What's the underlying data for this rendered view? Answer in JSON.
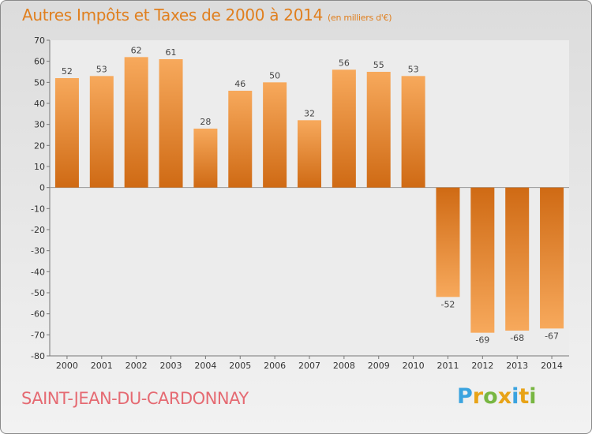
{
  "header": {
    "title": "Autres Impôts et Taxes de 2000 à 2014",
    "subtitle": "(en milliers d'€)"
  },
  "footer": {
    "commune": "SAINT-JEAN-DU-CARDONNAY",
    "logo_letters": [
      "P",
      "r",
      "o",
      "x",
      "i",
      "t",
      "i"
    ],
    "logo_colors": [
      "#3aa3df",
      "#e8a317",
      "#78b642",
      "#e8a317",
      "#3aa3df",
      "#e8a317",
      "#78b642"
    ]
  },
  "chart_data": {
    "type": "bar",
    "categories": [
      "2000",
      "2001",
      "2002",
      "2003",
      "2004",
      "2005",
      "2006",
      "2007",
      "2008",
      "2009",
      "2010",
      "2011",
      "2012",
      "2013",
      "2014"
    ],
    "values": [
      52,
      53,
      62,
      61,
      28,
      46,
      50,
      32,
      56,
      55,
      53,
      -52,
      -69,
      -68,
      -67
    ],
    "data_labels": [
      "52",
      "53",
      "62",
      "61",
      "28",
      "46",
      "50",
      "32",
      "56",
      "55",
      "53",
      "-52",
      "-69",
      "-68",
      "-67"
    ],
    "ylim": [
      -80,
      70
    ],
    "yticks": [
      70,
      60,
      50,
      40,
      30,
      20,
      10,
      0,
      -10,
      -20,
      -30,
      -40,
      -50,
      -60,
      -70,
      -80
    ],
    "grid": false,
    "bar_color": "#e07f1e"
  }
}
